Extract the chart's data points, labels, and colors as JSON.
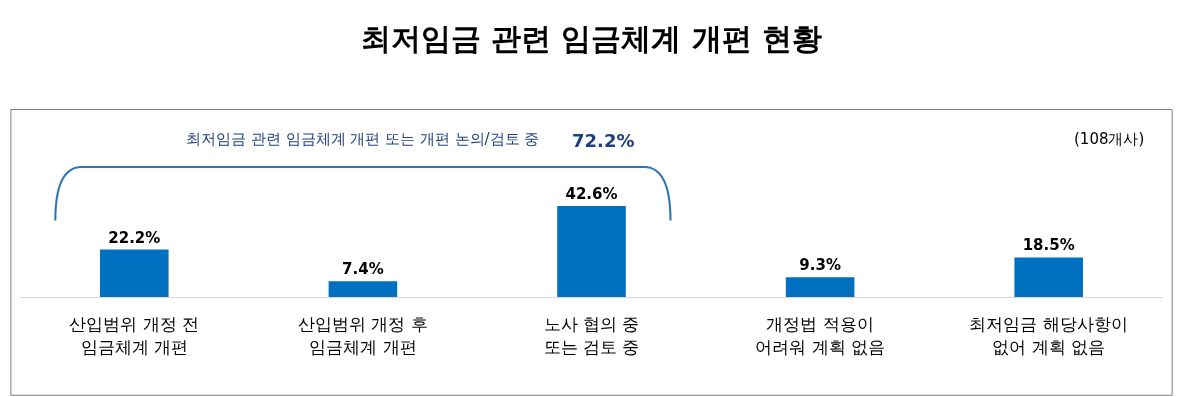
{
  "chart_data": {
    "type": "bar",
    "title": "최저임금 관련 임금체계 개편 현황",
    "categories": [
      "산입범위 개정 전\n임금체계 개편",
      "산입범위 개정 후\n임금체계 개편",
      "노사 협의 중\n또는 검토 중",
      "개정법 적용이\n어려워 계획 없음",
      "최저임금 해당사항이\n없어 계획 없음"
    ],
    "values": [
      22.2,
      7.4,
      42.6,
      9.3,
      18.5
    ],
    "color": "#0070c0",
    "value_labels": [
      "22.2%",
      "7.4%",
      "42.6%",
      "9.3%",
      "18.5%"
    ],
    "annotations": [
      "최저임금 관련 임금체계 개편 또는 개편 논의/검토 중",
      "72.2%",
      "(108개사)"
    ]
  }
}
